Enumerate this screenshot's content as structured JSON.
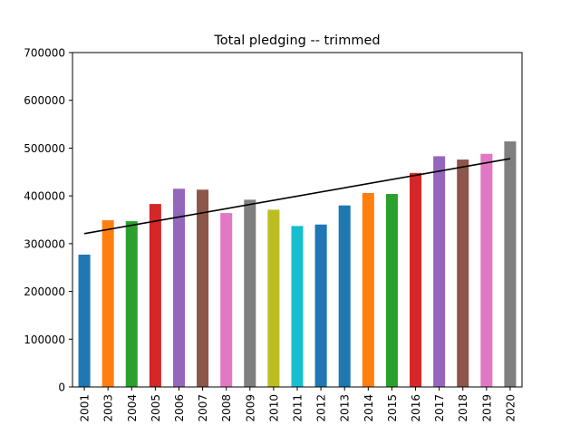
{
  "chart_data": {
    "type": "bar",
    "title": "Total pledging  -- trimmed",
    "xlabel": "",
    "ylabel": "",
    "ylim": [
      0,
      700000
    ],
    "yticks": [
      0,
      100000,
      200000,
      300000,
      400000,
      500000,
      600000,
      700000
    ],
    "yticklabels": [
      "0",
      "100000",
      "200000",
      "300000",
      "400000",
      "500000",
      "600000",
      "700000"
    ],
    "grid": false,
    "categories": [
      "2001",
      "2003",
      "2004",
      "2005",
      "2006",
      "2007",
      "2008",
      "2009",
      "2010",
      "2011",
      "2012",
      "2013",
      "2014",
      "2015",
      "2016",
      "2017",
      "2018",
      "2019",
      "2020"
    ],
    "values": [
      277000,
      349000,
      347000,
      383000,
      415000,
      413000,
      364000,
      392000,
      371000,
      337000,
      340000,
      380000,
      406000,
      404000,
      448000,
      483000,
      476000,
      488000,
      514000
    ],
    "colors": [
      "#1f77b4",
      "#ff7f0e",
      "#2ca02c",
      "#d62728",
      "#9467bd",
      "#8c564b",
      "#e377c2",
      "#7f7f7f",
      "#bcbd22",
      "#17becf",
      "#1f77b4",
      "#1f77b4",
      "#ff7f0e",
      "#2ca02c",
      "#d62728",
      "#9467bd",
      "#8c564b",
      "#e377c2",
      "#7f7f7f"
    ],
    "trendline": {
      "start": 321000,
      "end": 478000,
      "color": "#000000"
    }
  }
}
